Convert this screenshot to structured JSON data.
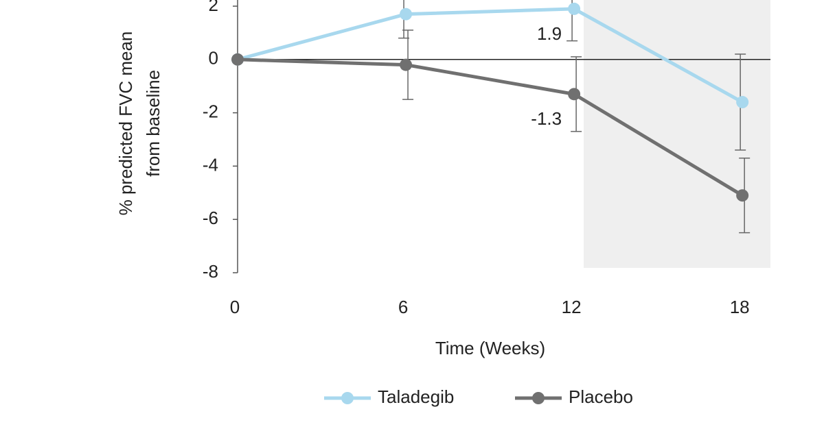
{
  "chart_data": {
    "type": "line",
    "y_label": [
      "% predicted FVC mean",
      "from baseline"
    ],
    "x_label": "Time (Weeks)",
    "x": [
      0,
      6,
      12,
      18
    ],
    "xlim": [
      0,
      19
    ],
    "xticks": [
      0,
      6,
      12,
      18
    ],
    "ylim": [
      -8,
      2
    ],
    "yticks": [
      -8,
      -6,
      -4,
      -2,
      0,
      2
    ],
    "legend": "bottom",
    "series": [
      {
        "name": "Taladegib",
        "color": "#a8d8ee",
        "values": [
          0,
          1.7,
          1.9,
          -1.6
        ],
        "errors": [
          0,
          0.9,
          1.2,
          1.8
        ],
        "value_labels": [
          null,
          null,
          "1.9",
          null
        ]
      },
      {
        "name": "Placebo",
        "color": "#707070",
        "values": [
          0,
          -0.2,
          -1.3,
          -5.1
        ],
        "errors": [
          0,
          1.3,
          1.4,
          1.4
        ],
        "value_labels": [
          null,
          null,
          "-1.3",
          null
        ]
      }
    ]
  }
}
